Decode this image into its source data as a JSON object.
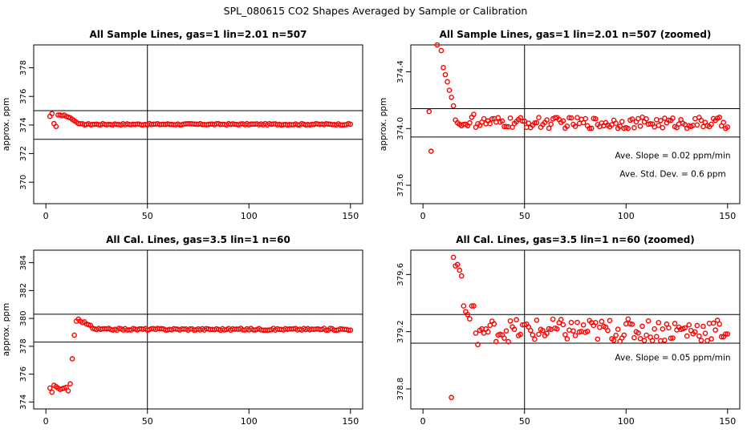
{
  "figure_title": "SPL_080615  CO2 Shapes Averaged by Sample or Calibration",
  "colors": {
    "points": "#ff0000",
    "axes": "#000000",
    "background": "#ffffff"
  },
  "chart_data": [
    {
      "type": "scatter",
      "title": "All Sample Lines, gas=1 lin=2.01 n=507",
      "xlabel": "",
      "ylabel": "approx. ppm",
      "xlim": [
        -6,
        156
      ],
      "ylim": [
        368.5,
        379.6
      ],
      "xticks": [
        0,
        50,
        100,
        150
      ],
      "xtick_labels": [
        "0",
        "50",
        "100",
        "150"
      ],
      "yticks": [
        370,
        372,
        374,
        376,
        378
      ],
      "ytick_labels": [
        "370",
        "372",
        "374",
        "376",
        "378"
      ],
      "hlines": [
        375.0,
        373.0
      ],
      "vlines": [
        50
      ],
      "annotations": [],
      "series": [
        {
          "name": "sample",
          "x": [
            2,
            3,
            4,
            5,
            6,
            7,
            8,
            9,
            10,
            11,
            12,
            13,
            14,
            15,
            16
          ],
          "y": [
            374.6,
            374.8,
            374.1,
            373.9,
            374.7,
            374.7,
            374.65,
            374.7,
            374.6,
            374.55,
            374.5,
            374.4,
            374.3,
            374.2,
            374.1
          ]
        }
      ],
      "steady": {
        "x_from": 17,
        "x_to": 150,
        "level": 374.05,
        "noise": 0.05
      }
    },
    {
      "type": "scatter",
      "title": "All Sample Lines, gas=1 lin=2.01 n=507 (zoomed)",
      "xlabel": "",
      "ylabel": "approx. ppm",
      "xlim": [
        -6,
        156
      ],
      "ylim": [
        373.47,
        374.59
      ],
      "xticks": [
        0,
        50,
        100,
        150
      ],
      "xtick_labels": [
        "0",
        "50",
        "100",
        "150"
      ],
      "yticks": [
        373.6,
        374.0,
        374.4
      ],
      "ytick_labels": [
        "373.6",
        "374.0",
        "374.4"
      ],
      "hlines": [
        374.14,
        373.94
      ],
      "vlines": [
        50
      ],
      "annotations": [
        {
          "text": "Ave. Slope =  0.02  ppm/min",
          "x": 123,
          "y": 373.79
        },
        {
          "text": "Ave. Std. Dev. =  0.6  ppm",
          "x": 123,
          "y": 373.66
        }
      ],
      "series": [
        {
          "name": "sample",
          "x": [
            3,
            4,
            7,
            9,
            10,
            11,
            12,
            13,
            14,
            15,
            16,
            17,
            18,
            19,
            20,
            21,
            22,
            23,
            24,
            25
          ],
          "y": [
            374.12,
            373.84,
            374.59,
            374.55,
            374.43,
            374.38,
            374.33,
            374.27,
            374.22,
            374.16,
            374.06,
            374.04,
            374.03,
            374.02,
            374.03,
            374.03,
            374.02,
            374.04,
            374.08,
            374.1
          ]
        }
      ],
      "steady": {
        "x_from": 26,
        "x_to": 150,
        "level": 374.04,
        "noise": 0.04
      }
    },
    {
      "type": "scatter",
      "title": "All Cal. Lines, gas=3.5 lin=1 n=60",
      "xlabel": "",
      "ylabel": "approx. ppm",
      "xlim": [
        -6,
        156
      ],
      "ylim": [
        373.5,
        384.9
      ],
      "xticks": [
        0,
        50,
        100,
        150
      ],
      "xtick_labels": [
        "0",
        "50",
        "100",
        "150"
      ],
      "yticks": [
        374,
        376,
        378,
        380,
        382,
        384
      ],
      "ytick_labels": [
        "374",
        "376",
        "378",
        "380",
        "382",
        "384"
      ],
      "hlines": [
        380.3,
        378.3
      ],
      "vlines": [
        50
      ],
      "annotations": [],
      "series": [
        {
          "name": "cal",
          "x": [
            2,
            3,
            4,
            5,
            6,
            7,
            8,
            9,
            10,
            11,
            12,
            13,
            14,
            15,
            16,
            17,
            18,
            19,
            20,
            21,
            22,
            23,
            24
          ],
          "y": [
            375.0,
            374.7,
            375.2,
            375.1,
            375.0,
            374.9,
            374.95,
            375.0,
            375.05,
            374.8,
            375.3,
            377.1,
            378.8,
            379.8,
            379.95,
            379.8,
            379.7,
            379.75,
            379.6,
            379.55,
            379.5,
            379.3,
            379.25
          ]
        }
      ],
      "steady": {
        "x_from": 25,
        "x_to": 150,
        "level": 379.22,
        "noise": 0.07
      }
    },
    {
      "type": "scatter",
      "title": "All Cal. Lines, gas=3.5 lin=1 n=60 (zoomed)",
      "xlabel": "",
      "ylabel": "",
      "xlim": [
        -6,
        156
      ],
      "ylim": [
        378.66,
        379.77
      ],
      "xticks": [
        0,
        50,
        100,
        150
      ],
      "xtick_labels": [
        "0",
        "50",
        "100",
        "150"
      ],
      "yticks": [
        378.8,
        379.2,
        379.6
      ],
      "ytick_labels": [
        "378.8",
        "379.2",
        "379.6"
      ],
      "hlines": [
        379.32,
        379.12
      ],
      "vlines": [
        50
      ],
      "annotations": [
        {
          "text": "Ave. Slope =  0.05  ppm/min",
          "x": 123,
          "y": 379.0
        }
      ],
      "series": [
        {
          "name": "cal",
          "x": [
            14,
            15,
            16,
            17,
            18,
            19,
            20,
            21,
            22,
            23,
            24,
            25,
            26,
            27,
            28,
            29,
            30
          ],
          "y": [
            378.74,
            379.72,
            379.66,
            379.67,
            379.63,
            379.59,
            379.38,
            379.34,
            379.32,
            379.29,
            379.38,
            379.38,
            379.19,
            379.11,
            379.21,
            379.22,
            379.19
          ]
        }
      ],
      "steady": {
        "x_from": 31,
        "x_to": 150,
        "level": 379.21,
        "noise": 0.08
      }
    }
  ]
}
